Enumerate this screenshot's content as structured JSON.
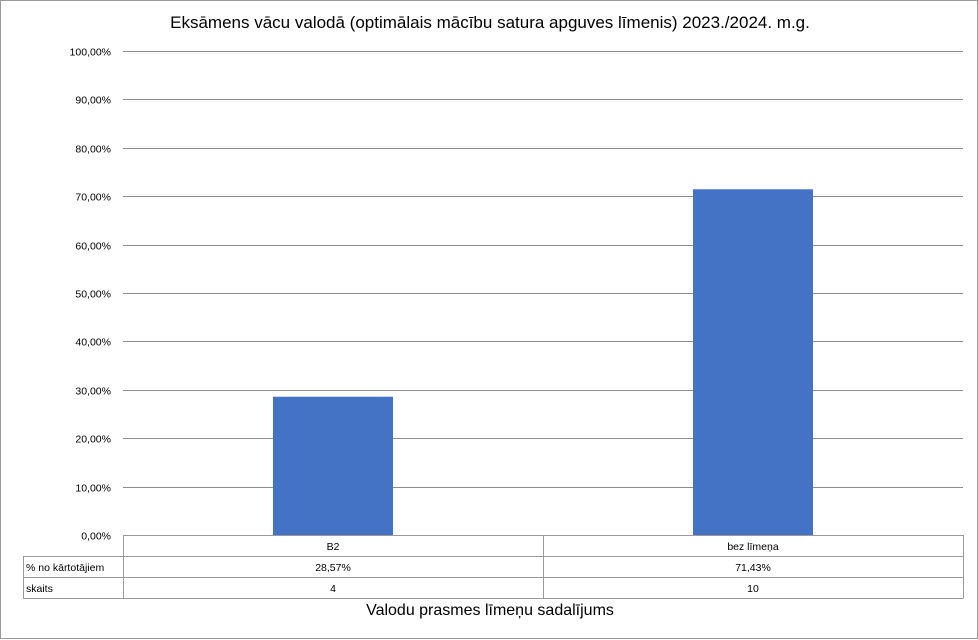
{
  "chart_data": {
    "type": "bar",
    "title": "Eksāmens vācu valodā (optimālais mācību satura apguves līmenis) 2023./2024. m.g.",
    "xlabel": "Valodu prasmes līmeņu sadalījums",
    "ylabel": "",
    "categories": [
      "B2",
      "bez līmeņa"
    ],
    "series": [
      {
        "name": "% no kārtotājiem",
        "values": [
          28.57,
          71.43
        ]
      }
    ],
    "value_labels": [
      "28,57%",
      "71,43%"
    ],
    "data_table": [
      {
        "name": "% no kārtotājiem",
        "cells": [
          "28,57%",
          "71,43%"
        ]
      },
      {
        "name": "skaits",
        "cells": [
          "4",
          "10"
        ]
      }
    ],
    "ylim": [
      0,
      100
    ],
    "y_ticks": [
      0,
      10,
      20,
      30,
      40,
      50,
      60,
      70,
      80,
      90,
      100
    ],
    "y_tick_labels": [
      "0,00%",
      "10,00%",
      "20,00%",
      "30,00%",
      "40,00%",
      "50,00%",
      "60,00%",
      "70,00%",
      "80,00%",
      "90,00%",
      "100,00%"
    ],
    "grid": true,
    "legend": "none",
    "colors": {
      "bar": "#4472C4",
      "grid": "#8c8c8c",
      "table_border": "#9a9a9a"
    }
  }
}
